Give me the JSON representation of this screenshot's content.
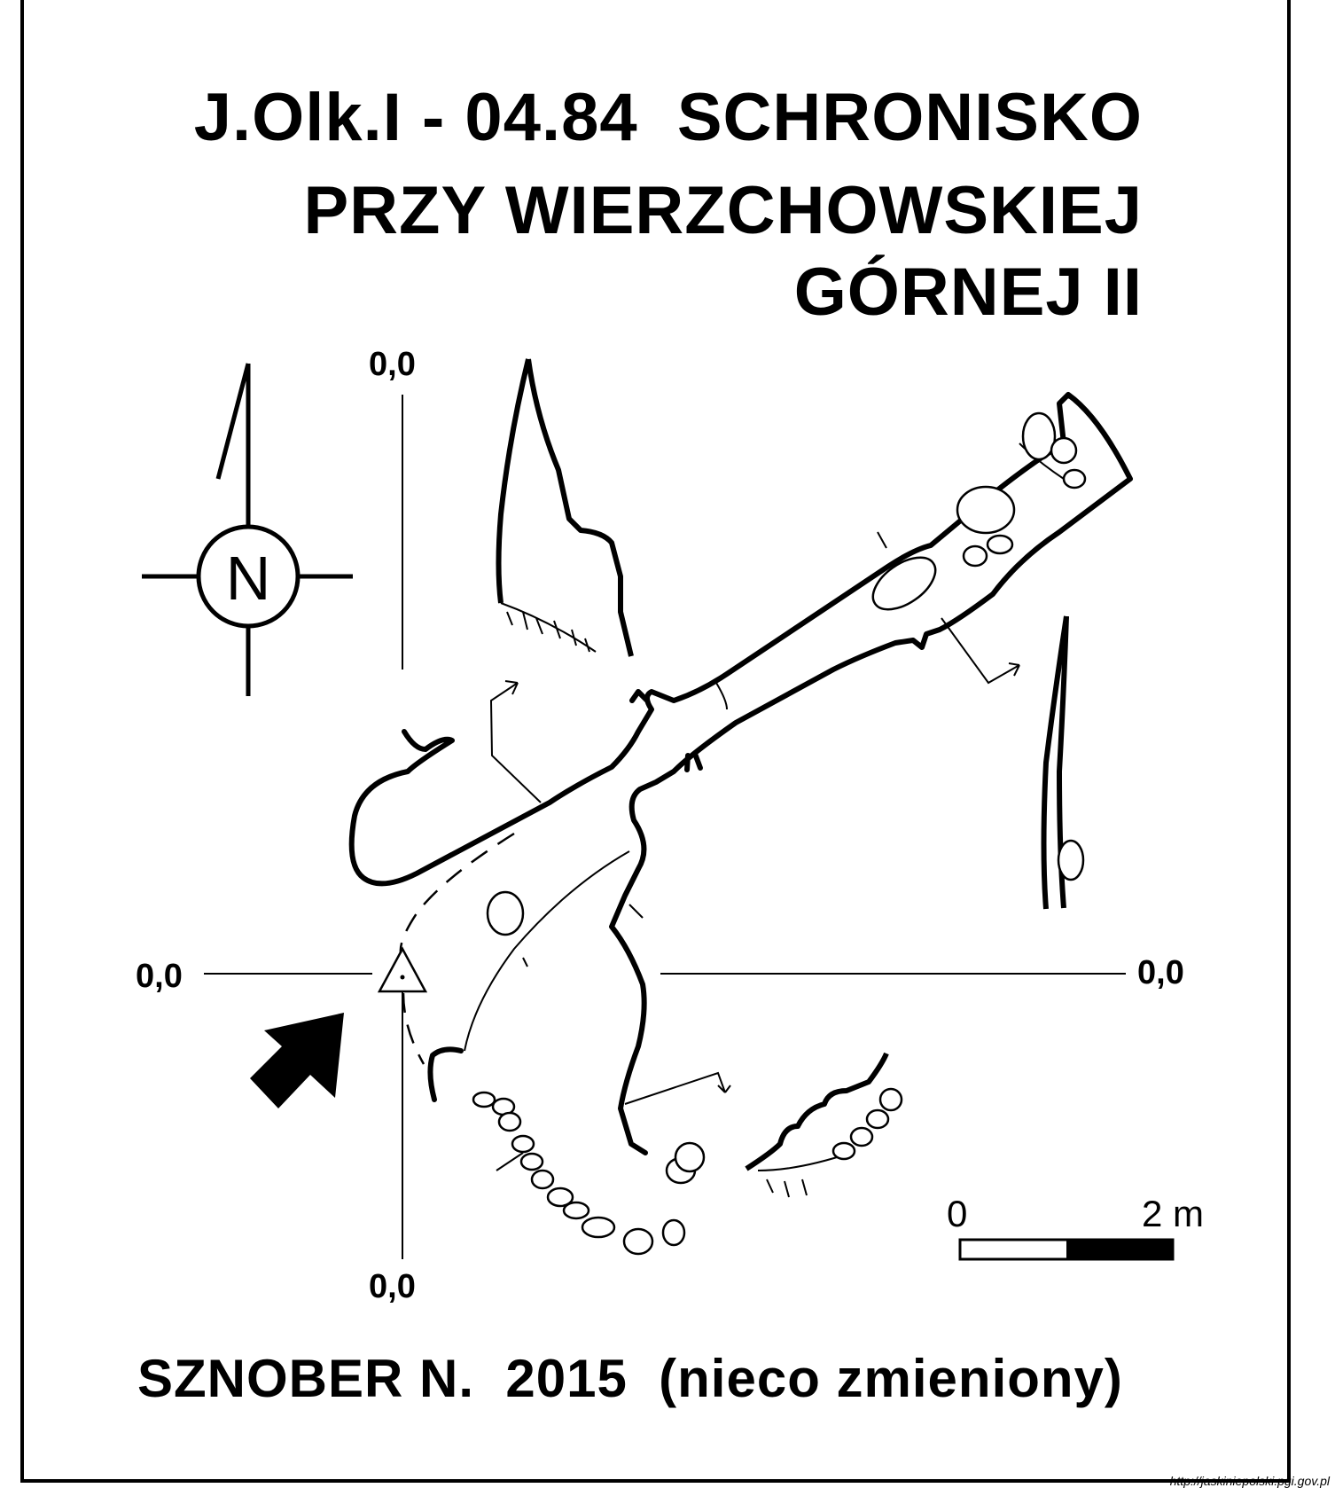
{
  "title": {
    "line1": "J.Olk.I - 04.84  SCHRONISKO",
    "line2": "PRZY WIERZCHOWSKIEJ",
    "line3": "GÓRNEJ II"
  },
  "coordinates": {
    "top": "0,0",
    "left": "0,0",
    "right": "0,0",
    "bottom": "0,0"
  },
  "compass": {
    "label": "N",
    "icon": "north-arrow-icon"
  },
  "scale": {
    "start": "0",
    "end": "2 m"
  },
  "author": "SZNOBER N.  2015  (nieco zmieniony)",
  "url": "http://jaskiniepolski.pgi.gov.pl",
  "colors": {
    "ink": "#000000",
    "paper": "#ffffff"
  }
}
